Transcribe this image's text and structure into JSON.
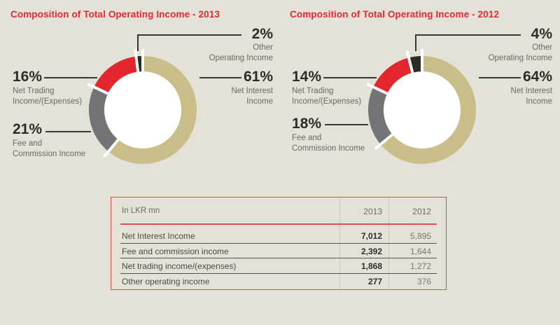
{
  "colors": {
    "background": "#e4e1d8",
    "title_red": "#e8282d",
    "callout_line": "#3a3733",
    "percent_text": "#2f2b27",
    "label_text": "#6c6862",
    "table_border_red": "#d0564c",
    "table_row_separator": "#56534c",
    "donut_hole": "#ffffff"
  },
  "charts": [
    {
      "title": "Composition of Total Operating Income - 2013",
      "segments": [
        {
          "name": "Net Interest Income",
          "pct": 61,
          "pct_label": "61%",
          "label_lines": [
            "Net Interest",
            "Income"
          ],
          "color": "#c9bd88"
        },
        {
          "name": "Fee and Commission Income",
          "pct": 21,
          "pct_label": "21%",
          "label_lines": [
            "Fee and",
            "Commission Income"
          ],
          "color": "#737478"
        },
        {
          "name": "Net Trading Income/(Expenses)",
          "pct": 16,
          "pct_label": "16%",
          "label_lines": [
            "Net Trading",
            "Income/(Expenses)"
          ],
          "color": "#e2262b"
        },
        {
          "name": "Other Operating Income",
          "pct": 2,
          "pct_label": "2%",
          "label_lines": [
            "Other",
            "Operating Income"
          ],
          "color": "#2d2a26"
        }
      ]
    },
    {
      "title": "Composition of Total Operating Income - 2012",
      "segments": [
        {
          "name": "Net Interest Income",
          "pct": 64,
          "pct_label": "64%",
          "label_lines": [
            "Net Interest",
            "Income"
          ],
          "color": "#c9bd88"
        },
        {
          "name": "Fee and Commission Income",
          "pct": 18,
          "pct_label": "18%",
          "label_lines": [
            "Fee and",
            "Commission Income"
          ],
          "color": "#737478"
        },
        {
          "name": "Net Trading Income/(Expenses)",
          "pct": 14,
          "pct_label": "14%",
          "label_lines": [
            "Net Trading",
            "Income/(Expenses)"
          ],
          "color": "#e2262b"
        },
        {
          "name": "Other Operating Income",
          "pct": 4,
          "pct_label": "4%",
          "label_lines": [
            "Other",
            "Operating Income"
          ],
          "color": "#2d2a26"
        }
      ]
    }
  ],
  "table": {
    "unit_label": "In LKR mn",
    "columns": [
      "2013",
      "2012"
    ],
    "rows": [
      {
        "label": "Net Interest Income",
        "v2013": "7,012",
        "v2012": "5,895"
      },
      {
        "label": "Fee and commission income",
        "v2013": "2,392",
        "v2012": "1,644"
      },
      {
        "label": "Net trading income/(expenses)",
        "v2013": "1,868",
        "v2012": "1,272"
      },
      {
        "label": "Other operating income",
        "v2013": "277",
        "v2012": "376"
      }
    ]
  },
  "chart_data": [
    {
      "type": "pie",
      "style": "donut",
      "title": "Composition of Total Operating Income - 2013",
      "labels": [
        "Net Interest Income",
        "Fee and Commission Income",
        "Net Trading Income/(Expenses)",
        "Other Operating Income"
      ],
      "values": [
        61,
        21,
        16,
        2
      ],
      "unit": "%",
      "colors": [
        "#c9bd88",
        "#737478",
        "#e2262b",
        "#2d2a26"
      ],
      "legend_position": "callout-labels",
      "start_angle_deg": 0,
      "direction": "clockwise"
    },
    {
      "type": "pie",
      "style": "donut",
      "title": "Composition of Total Operating Income - 2012",
      "labels": [
        "Net Interest Income",
        "Fee and Commission Income",
        "Net Trading Income/(Expenses)",
        "Other Operating Income"
      ],
      "values": [
        64,
        18,
        14,
        4
      ],
      "unit": "%",
      "colors": [
        "#c9bd88",
        "#737478",
        "#e2262b",
        "#2d2a26"
      ],
      "legend_position": "callout-labels",
      "start_angle_deg": 0,
      "direction": "clockwise"
    },
    {
      "type": "table",
      "columns": [
        "In LKR mn",
        "2013",
        "2012"
      ],
      "rows": [
        [
          "Net Interest Income",
          "7,012",
          "5,895"
        ],
        [
          "Fee and commission income",
          "2,392",
          "1,644"
        ],
        [
          "Net trading income/(expenses)",
          "1,868",
          "1,272"
        ],
        [
          "Other operating income",
          "277",
          "376"
        ]
      ]
    }
  ]
}
